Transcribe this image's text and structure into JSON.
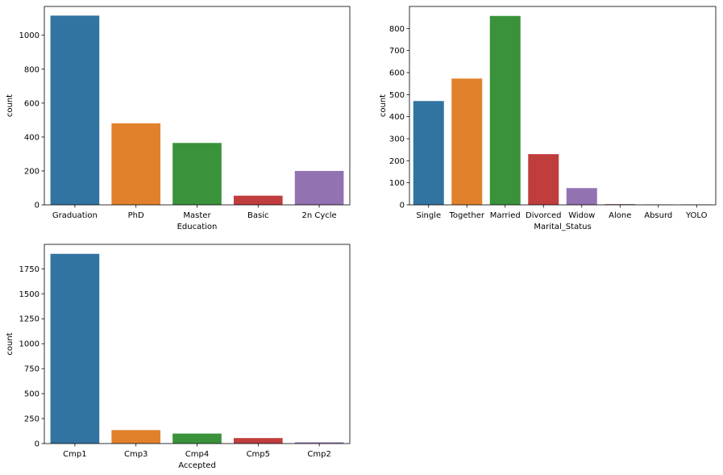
{
  "chart_data": [
    {
      "type": "bar",
      "xlabel": "Education",
      "ylabel": "count",
      "categories": [
        "Graduation",
        "PhD",
        "Master",
        "Basic",
        "2n Cycle"
      ],
      "values": [
        1116,
        481,
        365,
        54,
        200
      ],
      "colors": [
        "#3274a1",
        "#e1812c",
        "#3a923a",
        "#c03d3e",
        "#9372b2"
      ],
      "ylim": [
        0,
        1170
      ],
      "yticks": [
        0,
        200,
        400,
        600,
        800,
        1000
      ],
      "ytick_labels": [
        "0",
        "200",
        "400",
        "600",
        "800",
        "1000"
      ],
      "grid": false
    },
    {
      "type": "bar",
      "xlabel": "Marital_Status",
      "ylabel": "count",
      "categories": [
        "Single",
        "Together",
        "Married",
        "Divorced",
        "Widow",
        "Alone",
        "Absurd",
        "YOLO"
      ],
      "values": [
        471,
        573,
        857,
        230,
        76,
        3,
        2,
        2
      ],
      "colors": [
        "#3274a1",
        "#e1812c",
        "#3a923a",
        "#c03d3e",
        "#9372b2",
        "#845b53",
        "#d684bd",
        "#7f7f7f"
      ],
      "ylim": [
        0,
        900
      ],
      "yticks": [
        0,
        100,
        200,
        300,
        400,
        500,
        600,
        700,
        800
      ],
      "ytick_labels": [
        "0",
        "100",
        "200",
        "300",
        "400",
        "500",
        "600",
        "700",
        "800"
      ],
      "grid": false
    },
    {
      "type": "bar",
      "xlabel": "Accepted",
      "ylabel": "count",
      "categories": [
        "Cmp1",
        "Cmp3",
        "Cmp4",
        "Cmp5",
        "Cmp2"
      ],
      "values": [
        1900,
        135,
        100,
        55,
        12
      ],
      "colors": [
        "#3274a1",
        "#e1812c",
        "#3a923a",
        "#c03d3e",
        "#9372b2"
      ],
      "ylim": [
        0,
        1995
      ],
      "yticks": [
        0,
        250,
        500,
        750,
        1000,
        1250,
        1500,
        1750
      ],
      "ytick_labels": [
        "0",
        "250",
        "500",
        "750",
        "1000",
        "1250",
        "1500",
        "1750"
      ],
      "grid": false
    }
  ]
}
